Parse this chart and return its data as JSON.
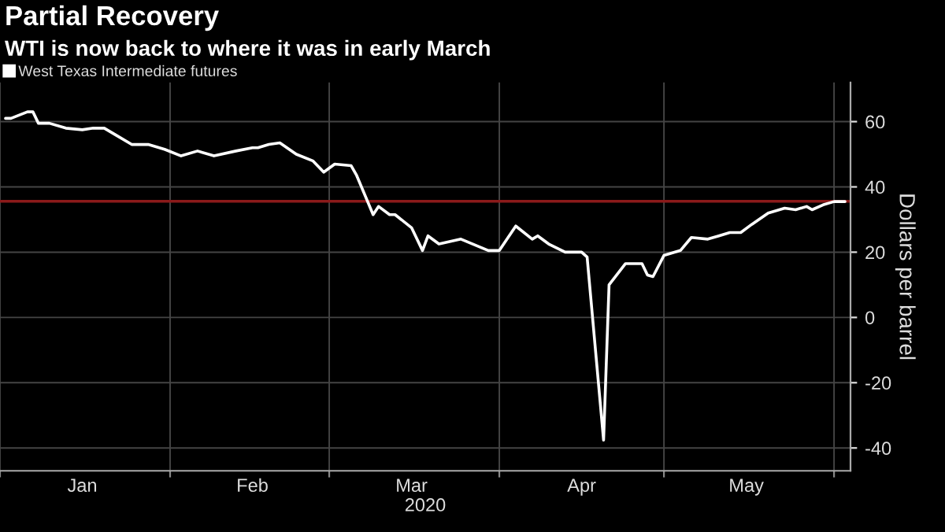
{
  "chart_data": {
    "type": "line",
    "title": "Partial Recovery",
    "subtitle": "WTI is now back to where it was in early March",
    "xlabel": "2020",
    "ylabel": "Dollars per barrel",
    "x": [
      "2020-01-02",
      "2020-01-03",
      "2020-01-06",
      "2020-01-07",
      "2020-01-08",
      "2020-01-10",
      "2020-01-13",
      "2020-01-16",
      "2020-01-18",
      "2020-01-20",
      "2020-01-22",
      "2020-01-25",
      "2020-01-28",
      "2020-01-31",
      "2020-02-03",
      "2020-02-06",
      "2020-02-09",
      "2020-02-13",
      "2020-02-16",
      "2020-02-17",
      "2020-02-19",
      "2020-02-21",
      "2020-02-24",
      "2020-02-27",
      "2020-02-29",
      "2020-03-02",
      "2020-03-05",
      "2020-03-06",
      "2020-03-09",
      "2020-03-10",
      "2020-03-12",
      "2020-03-13",
      "2020-03-16",
      "2020-03-18",
      "2020-03-19",
      "2020-03-21",
      "2020-03-25",
      "2020-03-30",
      "2020-04-01",
      "2020-04-04",
      "2020-04-07",
      "2020-04-08",
      "2020-04-10",
      "2020-04-13",
      "2020-04-16",
      "2020-04-17",
      "2020-04-20",
      "2020-04-21",
      "2020-04-24",
      "2020-04-27",
      "2020-04-28",
      "2020-04-29",
      "2020-05-01",
      "2020-05-04",
      "2020-05-06",
      "2020-05-09",
      "2020-05-11",
      "2020-05-13",
      "2020-05-15",
      "2020-05-17",
      "2020-05-20",
      "2020-05-23",
      "2020-05-25",
      "2020-05-27",
      "2020-05-28",
      "2020-05-30",
      "2020-06-01",
      "2020-06-03"
    ],
    "series": [
      {
        "name": "West Texas Intermediate futures",
        "color": "#ffffff",
        "values": [
          61,
          61,
          63,
          63,
          59.5,
          59.5,
          58,
          57.5,
          58,
          58,
          56,
          53,
          53,
          51.5,
          49.5,
          51,
          49.5,
          51,
          52,
          52,
          53,
          53.5,
          50,
          48,
          44.5,
          47,
          46.5,
          43.5,
          31.5,
          34,
          31.5,
          31.5,
          27.5,
          20.5,
          25,
          22.5,
          24,
          20.5,
          20.5,
          28,
          24,
          25,
          22.5,
          20,
          20,
          18.5,
          -37.6,
          10,
          16.5,
          16.5,
          13,
          12.5,
          19,
          20.5,
          24.5,
          24,
          25,
          26,
          26,
          28.5,
          32,
          33.5,
          33,
          34,
          33,
          34.5,
          35.5,
          35.5
        ]
      }
    ],
    "xlim": [
      "2020-01-01",
      "2020-06-04"
    ],
    "xticks": [
      {
        "value": "2020-01-01",
        "label": null
      },
      {
        "value": "2020-01-16",
        "label": "Jan"
      },
      {
        "value": "2020-02-01",
        "label": null
      },
      {
        "value": "2020-02-16",
        "label": "Feb"
      },
      {
        "value": "2020-03-01",
        "label": null
      },
      {
        "value": "2020-03-16",
        "label": "Mar"
      },
      {
        "value": "2020-04-01",
        "label": null
      },
      {
        "value": "2020-04-16",
        "label": "Apr"
      },
      {
        "value": "2020-05-01",
        "label": null
      },
      {
        "value": "2020-05-16",
        "label": "May"
      },
      {
        "value": "2020-06-01",
        "label": null
      }
    ],
    "ylim": [
      -47,
      72
    ],
    "yticks": [
      -40,
      -20,
      0,
      20,
      40,
      60
    ],
    "ref_lines": [
      {
        "axis": "y",
        "value": 35.6,
        "label": null,
        "color": "#8b1a1a",
        "line_style": "solid"
      }
    ],
    "grid": true,
    "legend": "top left",
    "marker": "none",
    "line_style": "solid"
  }
}
